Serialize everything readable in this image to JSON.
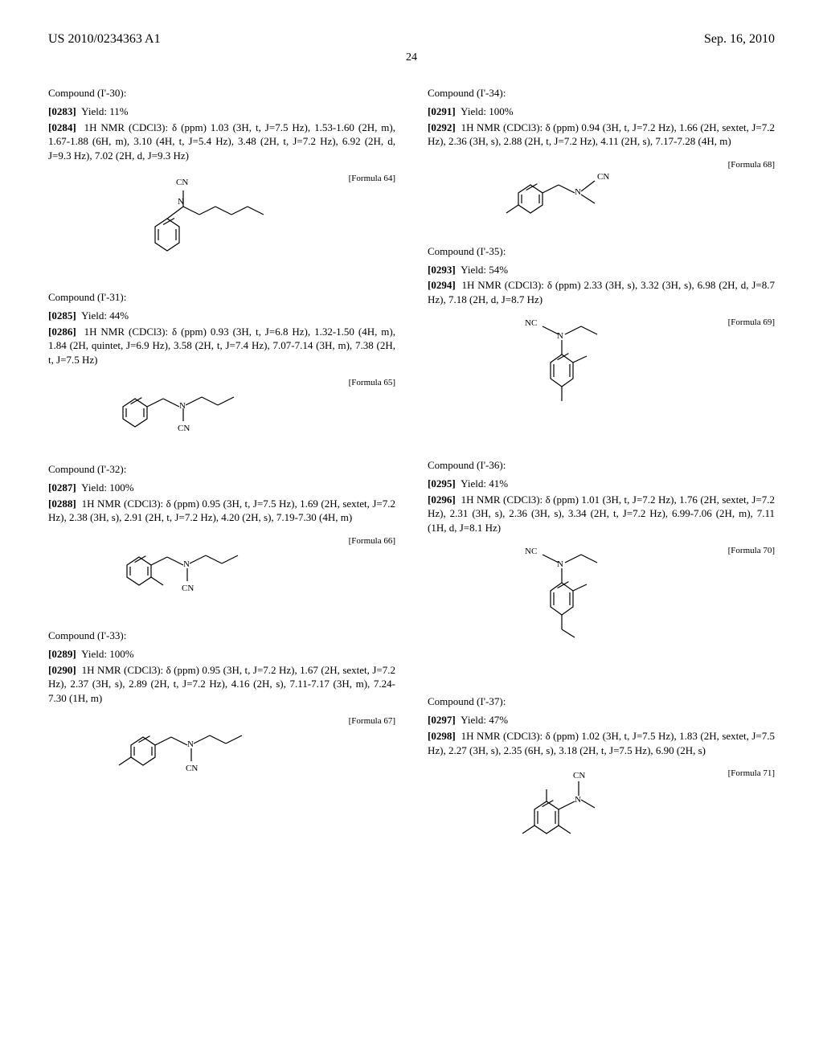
{
  "header": {
    "left": "US 2010/0234363 A1",
    "right": "Sep. 16, 2010"
  },
  "page_number": "24",
  "compounds": [
    {
      "col": "left",
      "title": "Compound (I'-30):",
      "paras": [
        {
          "num": "[0283]",
          "text": "Yield: 11%"
        },
        {
          "num": "[0284]",
          "text": "1H NMR (CDCl3): δ (ppm) 1.03 (3H, t, J=7.5 Hz), 1.53-1.60 (2H, m), 1.67-1.88 (6H, m), 3.10 (4H, t, J=5.4 Hz), 3.48 (2H, t, J=7.2 Hz), 6.92 (2H, d, J=9.3 Hz), 7.02 (2H, d, J=9.3 Hz)"
        }
      ],
      "formula_label": "[Formula 64]",
      "svg": "f64"
    },
    {
      "col": "left",
      "title": "Compound (I'-31):",
      "paras": [
        {
          "num": "[0285]",
          "text": "Yield: 44%"
        },
        {
          "num": "[0286]",
          "text": "1H NMR (CDCl3): δ (ppm) 0.93 (3H, t, J=6.8 Hz), 1.32-1.50 (4H, m), 1.84 (2H, quintet, J=6.9 Hz), 3.58 (2H, t, J=7.4 Hz), 7.07-7.14 (3H, m), 7.38 (2H, t, J=7.5 Hz)"
        }
      ],
      "formula_label": "[Formula 65]",
      "svg": "f65"
    },
    {
      "col": "left",
      "title": "Compound (I'-32):",
      "paras": [
        {
          "num": "[0287]",
          "text": "Yield: 100%"
        },
        {
          "num": "[0288]",
          "text": "1H NMR (CDCl3): δ (ppm) 0.95 (3H, t, J=7.5 Hz), 1.69 (2H, sextet, J=7.2 Hz), 2.38 (3H, s), 2.91 (2H, t, J=7.2 Hz), 4.20 (2H, s), 7.19-7.30 (4H, m)"
        }
      ],
      "formula_label": "[Formula 66]",
      "svg": "f66"
    },
    {
      "col": "left",
      "title": "Compound (I'-33):",
      "paras": [
        {
          "num": "[0289]",
          "text": "Yield: 100%"
        },
        {
          "num": "[0290]",
          "text": "1H NMR (CDCl3): δ (ppm) 0.95 (3H, t, J=7.2 Hz), 1.67 (2H, sextet, J=7.2 Hz), 2.37 (3H, s), 2.89 (2H, t, J=7.2 Hz), 4.16 (2H, s), 7.11-7.17 (3H, m), 7.24-7.30 (1H, m)"
        }
      ],
      "formula_label": "[Formula 67]",
      "svg": "f67"
    },
    {
      "col": "right",
      "title": "Compound (I'-34):",
      "paras": [
        {
          "num": "[0291]",
          "text": "Yield: 100%"
        },
        {
          "num": "[0292]",
          "text": "1H NMR (CDCl3): δ (ppm) 0.94 (3H, t, J=7.2 Hz), 1.66 (2H, sextet, J=7.2 Hz), 2.36 (3H, s), 2.88 (2H, t, J=7.2 Hz), 4.11 (2H, s), 7.17-7.28 (4H, m)"
        }
      ],
      "formula_label": "[Formula 68]",
      "svg": "f68"
    },
    {
      "col": "right",
      "title": "Compound (I'-35):",
      "paras": [
        {
          "num": "[0293]",
          "text": "Yield: 54%"
        },
        {
          "num": "[0294]",
          "text": "1H NMR (CDCl3): δ (ppm) 2.33 (3H, s), 3.32 (3H, s), 6.98 (2H, d, J=8.7 Hz), 7.18 (2H, d, J=8.7 Hz)"
        }
      ],
      "formula_label": "[Formula 69]",
      "svg": "f69"
    },
    {
      "col": "right",
      "title": "Compound (I'-36):",
      "paras": [
        {
          "num": "[0295]",
          "text": "Yield: 41%"
        },
        {
          "num": "[0296]",
          "text": "1H NMR (CDCl3): δ (ppm) 1.01 (3H, t, J=7.2 Hz), 1.76 (2H, sextet, J=7.2 Hz), 2.31 (3H, s), 2.36 (3H, s), 3.34 (2H, t, J=7.2 Hz), 6.99-7.06 (2H, m), 7.11 (1H, d, J=8.1 Hz)"
        }
      ],
      "formula_label": "[Formula 70]",
      "svg": "f70"
    },
    {
      "col": "right",
      "title": "Compound (I'-37):",
      "paras": [
        {
          "num": "[0297]",
          "text": "Yield: 47%"
        },
        {
          "num": "[0298]",
          "text": "1H NMR (CDCl3): δ (ppm) 1.02 (3H, t, J=7.5 Hz), 1.83 (2H, sextet, J=7.5 Hz), 2.27 (3H, s), 2.35 (6H, s), 3.18 (2H, t, J=7.5 Hz), 6.90 (2H, s)"
        }
      ],
      "formula_label": "[Formula 71]",
      "svg": "f71"
    }
  ],
  "svg_labels": {
    "CN": "CN",
    "NC": "NC",
    "N": "N"
  },
  "style": {
    "stroke": "#000000",
    "stroke_width": 1.2,
    "font_family": "Times New Roman",
    "label_fontsize": 11
  }
}
